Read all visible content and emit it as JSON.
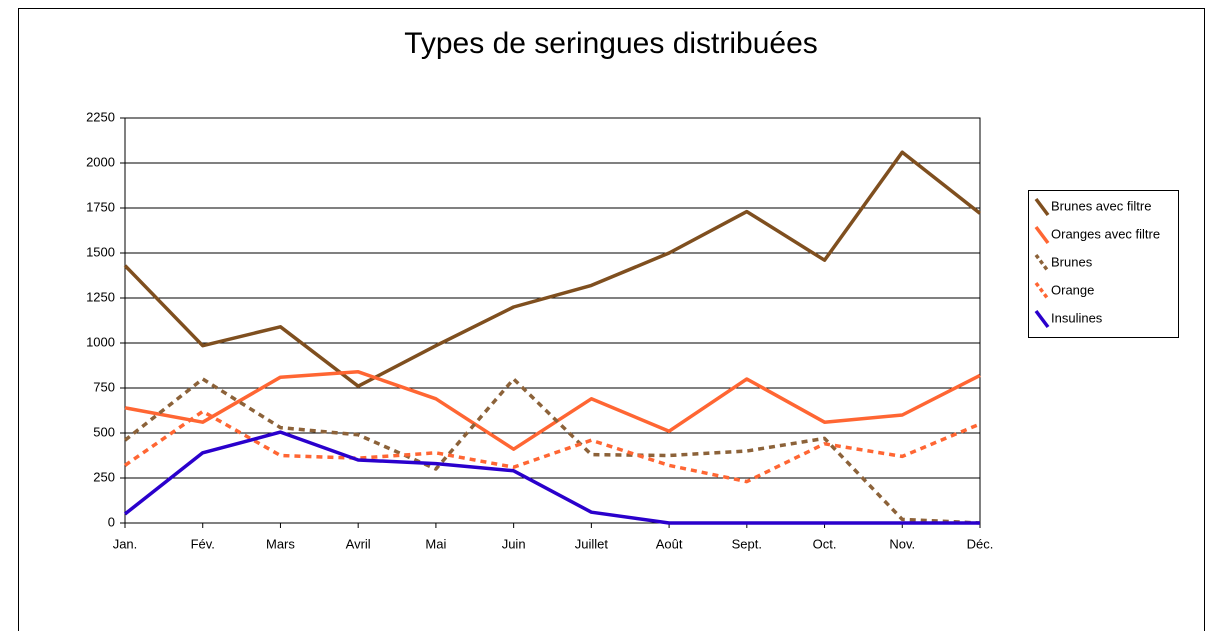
{
  "chart_data": {
    "type": "line",
    "title": "Types de seringues distribuées",
    "categories": [
      "Jan.",
      "Fév.",
      "Mars",
      "Avril",
      "Mai",
      "Juin",
      "Juillet",
      "Août",
      "Sept.",
      "Oct.",
      "Nov.",
      "Déc."
    ],
    "series": [
      {
        "name": "Brunes avec filtre",
        "color": "#7f4f1f",
        "dashed": false,
        "values": [
          1430,
          985,
          1090,
          760,
          985,
          1200,
          1320,
          1500,
          1730,
          1460,
          2060,
          1720
        ]
      },
      {
        "name": "Oranges avec filtre",
        "color": "#ff6633",
        "dashed": false,
        "values": [
          640,
          560,
          810,
          840,
          690,
          410,
          690,
          510,
          800,
          560,
          600,
          820
        ]
      },
      {
        "name": "Brunes",
        "color": "#8c6239",
        "dashed": true,
        "values": [
          460,
          800,
          530,
          490,
          300,
          800,
          380,
          375,
          400,
          470,
          20,
          0
        ]
      },
      {
        "name": "Orange",
        "color": "#ff6633",
        "dashed": true,
        "values": [
          320,
          620,
          375,
          360,
          390,
          310,
          460,
          320,
          230,
          440,
          370,
          550
        ]
      },
      {
        "name": "Insulines",
        "color": "#2a00cc",
        "dashed": false,
        "values": [
          50,
          390,
          505,
          350,
          330,
          290,
          60,
          0,
          0,
          0,
          0,
          0
        ]
      }
    ],
    "ylim": [
      0,
      2250
    ],
    "yticks": [
      0,
      250,
      500,
      750,
      1000,
      1250,
      1500,
      1750,
      2000,
      2250
    ],
    "grid": true,
    "legend": "right"
  }
}
